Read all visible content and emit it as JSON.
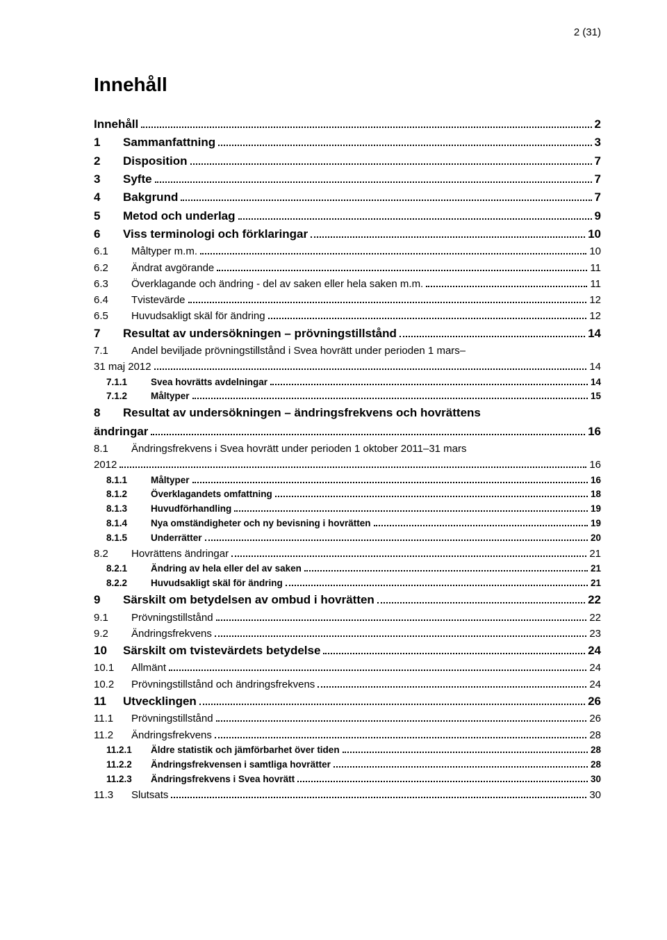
{
  "page_number_label": "2 (31)",
  "title": "Innehåll",
  "colors": {
    "text": "#000000",
    "background": "#ffffff"
  },
  "font": {
    "family": "Trebuchet MS / Verdana",
    "title_size_pt": 21,
    "lvl1_size_pt": 13,
    "lvl2_size_pt": 11.5,
    "lvl3_size_pt": 10.5
  },
  "entries": [
    {
      "level": 1,
      "num": "",
      "label": "Innehåll",
      "page": "2"
    },
    {
      "level": 1,
      "num": "1",
      "label": "Sammanfattning",
      "page": "3"
    },
    {
      "level": 1,
      "num": "2",
      "label": "Disposition",
      "page": "7"
    },
    {
      "level": 1,
      "num": "3",
      "label": "Syfte",
      "page": "7"
    },
    {
      "level": 1,
      "num": "4",
      "label": "Bakgrund",
      "page": "7"
    },
    {
      "level": 1,
      "num": "5",
      "label": "Metod och underlag",
      "page": "9"
    },
    {
      "level": 1,
      "num": "6",
      "label": "Viss terminologi och förklaringar",
      "page": "10"
    },
    {
      "level": 2,
      "num": "6.1",
      "label": "Måltyper m.m.",
      "page": "10"
    },
    {
      "level": 2,
      "num": "6.2",
      "label": "Ändrat avgörande",
      "page": "11"
    },
    {
      "level": 2,
      "num": "6.3",
      "label": "Överklagande och ändring - del av saken eller hela saken m.m.",
      "page": "11"
    },
    {
      "level": 2,
      "num": "6.4",
      "label": "Tvistevärde",
      "page": "12"
    },
    {
      "level": 2,
      "num": "6.5",
      "label": "Huvudsakligt skäl för ändring",
      "page": "12"
    },
    {
      "level": 1,
      "num": "7",
      "label": "Resultat av undersökningen – prövningstillstånd",
      "page": "14"
    },
    {
      "level": 2,
      "num": "7.1",
      "label_line1": "Andel beviljade prövningstillstånd i Svea hovrätt under perioden 1 mars–",
      "label_line2": "31 maj 2012",
      "page": "14",
      "wrap": true,
      "nopad": true
    },
    {
      "level": 3,
      "num": "7.1.1",
      "label": "Svea hovrätts avdelningar",
      "page": "14"
    },
    {
      "level": 3,
      "num": "7.1.2",
      "label": "Måltyper",
      "page": "15"
    },
    {
      "level": 1,
      "num": "8",
      "label_line1": "Resultat av undersökningen – ändringsfrekvens och hovrättens",
      "label_line2": "ändringar",
      "page": "16",
      "wrap": true,
      "nopad": true
    },
    {
      "level": 2,
      "num": "8.1",
      "label_line1": "Ändringsfrekvens i Svea hovrätt under perioden 1 oktober 2011–31 mars",
      "label_line2": "2012",
      "page": "16",
      "wrap": true,
      "nopad": true
    },
    {
      "level": 3,
      "num": "8.1.1",
      "label": "Måltyper",
      "page": "16"
    },
    {
      "level": 3,
      "num": "8.1.2",
      "label": "Överklagandets omfattning",
      "page": "18"
    },
    {
      "level": 3,
      "num": "8.1.3",
      "label": "Huvudförhandling",
      "page": "19"
    },
    {
      "level": 3,
      "num": "8.1.4",
      "label": "Nya omständigheter och ny bevisning i hovrätten",
      "page": "19"
    },
    {
      "level": 3,
      "num": "8.1.5",
      "label": "Underrätter",
      "page": "20"
    },
    {
      "level": 2,
      "num": "8.2",
      "label": "Hovrättens ändringar",
      "page": "21"
    },
    {
      "level": 3,
      "num": "8.2.1",
      "label": "Ändring av hela eller del av saken",
      "page": "21"
    },
    {
      "level": 3,
      "num": "8.2.2",
      "label": "Huvudsakligt skäl för ändring",
      "page": "21"
    },
    {
      "level": 1,
      "num": "9",
      "label": "Särskilt om betydelsen av ombud i hovrätten",
      "page": "22"
    },
    {
      "level": 2,
      "num": "9.1",
      "label": "Prövningstillstånd",
      "page": "22"
    },
    {
      "level": 2,
      "num": "9.2",
      "label": "Ändringsfrekvens",
      "page": "23"
    },
    {
      "level": 1,
      "num": "10",
      "label": "Särskilt om tvistevärdets betydelse",
      "page": "24"
    },
    {
      "level": 2,
      "num": "10.1",
      "label": "Allmänt",
      "page": "24"
    },
    {
      "level": 2,
      "num": "10.2",
      "label": "Prövningstillstånd och ändringsfrekvens",
      "page": "24"
    },
    {
      "level": 1,
      "num": "11",
      "label": "Utvecklingen",
      "page": "26"
    },
    {
      "level": 2,
      "num": "11.1",
      "label": "Prövningstillstånd",
      "page": "26"
    },
    {
      "level": 2,
      "num": "11.2",
      "label": "Ändringsfrekvens",
      "page": "28"
    },
    {
      "level": 3,
      "num": "11.2.1",
      "label": "Äldre statistik och jämförbarhet över tiden",
      "page": "28"
    },
    {
      "level": 3,
      "num": "11.2.2",
      "label": "Ändringsfrekvensen i samtliga hovrätter",
      "page": "28"
    },
    {
      "level": 3,
      "num": "11.2.3",
      "label": "Ändringsfrekvens i Svea hovrätt",
      "page": "30"
    },
    {
      "level": 2,
      "num": "11.3",
      "label": "Slutsats",
      "page": "30"
    }
  ]
}
